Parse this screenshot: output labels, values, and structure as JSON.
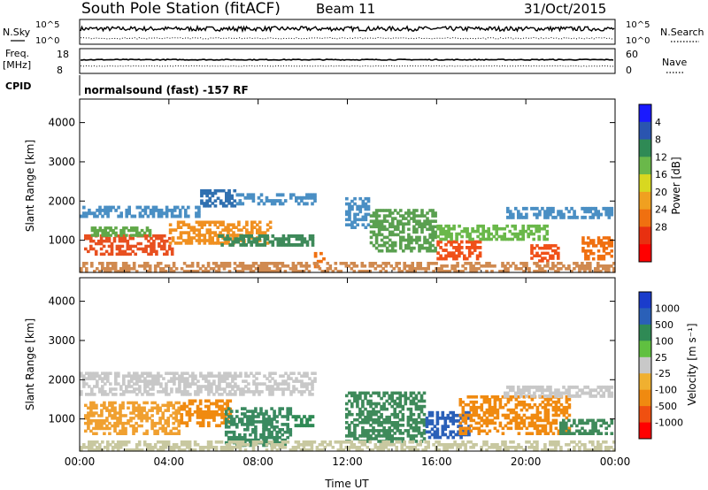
{
  "header": {
    "title": "South Pole Station (fitACF)",
    "beam": "Beam 11",
    "date": "31/Oct/2015"
  },
  "strips": {
    "nsky_label": "N.Sky",
    "nsky_top": "10^5",
    "nsky_bottom": "10^0",
    "nsearch_label": "N.Search",
    "nsearch_top": "10^5",
    "nsearch_bottom": "10^0",
    "freq_label": "Freq.",
    "freq_unit": "[MHz]",
    "freq_top": "18",
    "freq_bottom": "8",
    "nave_label": "Nave",
    "nave_top": "60",
    "nave_bottom": "0",
    "cpid_label": "CPID",
    "cpid_text": "normalsound (fast) -157 RF"
  },
  "chart_data": [
    {
      "type": "heatmap",
      "name": "power",
      "ylabel": "Slant Range [km]",
      "ylim": [
        180,
        4600
      ],
      "yticks": [
        "1000",
        "2000",
        "3000",
        "4000"
      ],
      "ytick_values": [
        1000,
        2000,
        3000,
        4000
      ],
      "xticks": [
        "00:00",
        "04:00",
        "08:00",
        "12:00",
        "16:00",
        "20:00",
        "00:00"
      ],
      "xlim_hours": [
        0,
        24
      ],
      "colorbar": {
        "label": "Power [dB]",
        "ticks": [
          "4",
          "8",
          "12",
          "16",
          "20",
          "24",
          "28"
        ],
        "colors": [
          "#1a1aff",
          "#2a55b0",
          "#2f8a55",
          "#6ab84a",
          "#d8d820",
          "#f0a020",
          "#f07010",
          "#e83010",
          "#ff0000"
        ]
      },
      "bands": [
        {
          "t0": 0.0,
          "t1": 5.4,
          "r0": 1580,
          "r1": 1880,
          "color": "#4a8fc4"
        },
        {
          "t0": 5.4,
          "t1": 7.0,
          "r0": 1850,
          "r1": 2300,
          "color": "#3070b0"
        },
        {
          "t0": 7.0,
          "t1": 10.6,
          "r0": 1900,
          "r1": 2200,
          "color": "#4a8fc4"
        },
        {
          "t0": 0.2,
          "t1": 4.2,
          "r0": 620,
          "r1": 1150,
          "color": "#e85020"
        },
        {
          "t0": 0.5,
          "t1": 3.2,
          "r0": 1100,
          "r1": 1350,
          "color": "#60a848"
        },
        {
          "t0": 4.0,
          "t1": 8.6,
          "r0": 900,
          "r1": 1500,
          "color": "#f09020"
        },
        {
          "t0": 6.2,
          "t1": 10.5,
          "r0": 850,
          "r1": 1150,
          "color": "#3e8a5a"
        },
        {
          "t0": 10.5,
          "t1": 11.0,
          "r0": 300,
          "r1": 700,
          "color": "#f07010"
        },
        {
          "t0": 11.9,
          "t1": 13.0,
          "r0": 1300,
          "r1": 2100,
          "color": "#4a8fc4"
        },
        {
          "t0": 13.0,
          "t1": 16.0,
          "r0": 700,
          "r1": 1800,
          "color": "#5aa050"
        },
        {
          "t0": 16.0,
          "t1": 18.0,
          "r0": 500,
          "r1": 1000,
          "color": "#f05018"
        },
        {
          "t0": 16.0,
          "t1": 21.0,
          "r0": 1000,
          "r1": 1400,
          "color": "#6ab84a"
        },
        {
          "t0": 19.0,
          "t1": 23.9,
          "r0": 1550,
          "r1": 1850,
          "color": "#4a8fc4"
        },
        {
          "t0": 20.2,
          "t1": 21.5,
          "r0": 450,
          "r1": 900,
          "color": "#f05018"
        },
        {
          "t0": 22.5,
          "t1": 23.9,
          "r0": 500,
          "r1": 1100,
          "color": "#f07010"
        },
        {
          "t0": 0.0,
          "t1": 24.0,
          "r0": 180,
          "r1": 450,
          "color": "#d08a50"
        }
      ]
    },
    {
      "type": "heatmap",
      "name": "velocity",
      "ylabel": "Slant Range [km]",
      "ylim": [
        180,
        4600
      ],
      "yticks": [
        "1000",
        "2000",
        "3000",
        "4000"
      ],
      "ytick_values": [
        1000,
        2000,
        3000,
        4000
      ],
      "xticks": [
        "00:00",
        "04:00",
        "08:00",
        "12:00",
        "16:00",
        "20:00",
        "00:00"
      ],
      "xlim_hours": [
        0,
        24
      ],
      "xlabel": "Time UT",
      "colorbar": {
        "label": "Velocity [m s⁻¹]",
        "ticks": [
          "1000",
          "500",
          "100",
          "25",
          "-25",
          "-100",
          "-500",
          "-1000"
        ],
        "colors": [
          "#1a3ccc",
          "#2a60b8",
          "#2f8a55",
          "#60c040",
          "#c8c8c8",
          "#f0b030",
          "#f08a10",
          "#f05010",
          "#ff0000"
        ]
      },
      "bands": [
        {
          "t0": 0.0,
          "t1": 10.6,
          "r0": 1600,
          "r1": 2200,
          "color": "#c8c8c8"
        },
        {
          "t0": 0.2,
          "t1": 4.5,
          "r0": 600,
          "r1": 1450,
          "color": "#f0a030"
        },
        {
          "t0": 4.5,
          "t1": 6.8,
          "r0": 800,
          "r1": 1500,
          "color": "#f08a10"
        },
        {
          "t0": 6.5,
          "t1": 9.5,
          "r0": 300,
          "r1": 1300,
          "color": "#3a8a60"
        },
        {
          "t0": 9.5,
          "t1": 10.5,
          "r0": 800,
          "r1": 1100,
          "color": "#2f8a55"
        },
        {
          "t0": 11.9,
          "t1": 15.5,
          "r0": 400,
          "r1": 1700,
          "color": "#3e8a5a"
        },
        {
          "t0": 15.5,
          "t1": 17.5,
          "r0": 500,
          "r1": 1200,
          "color": "#2a60b8"
        },
        {
          "t0": 17.0,
          "t1": 22.0,
          "r0": 600,
          "r1": 1600,
          "color": "#f08a10"
        },
        {
          "t0": 19.0,
          "t1": 23.9,
          "r0": 1550,
          "r1": 1850,
          "color": "#c8c8c8"
        },
        {
          "t0": 21.5,
          "t1": 23.9,
          "r0": 600,
          "r1": 1000,
          "color": "#3e8a5a"
        },
        {
          "t0": 0.0,
          "t1": 24.0,
          "r0": 180,
          "r1": 450,
          "color": "#c8c8a0"
        }
      ]
    }
  ]
}
